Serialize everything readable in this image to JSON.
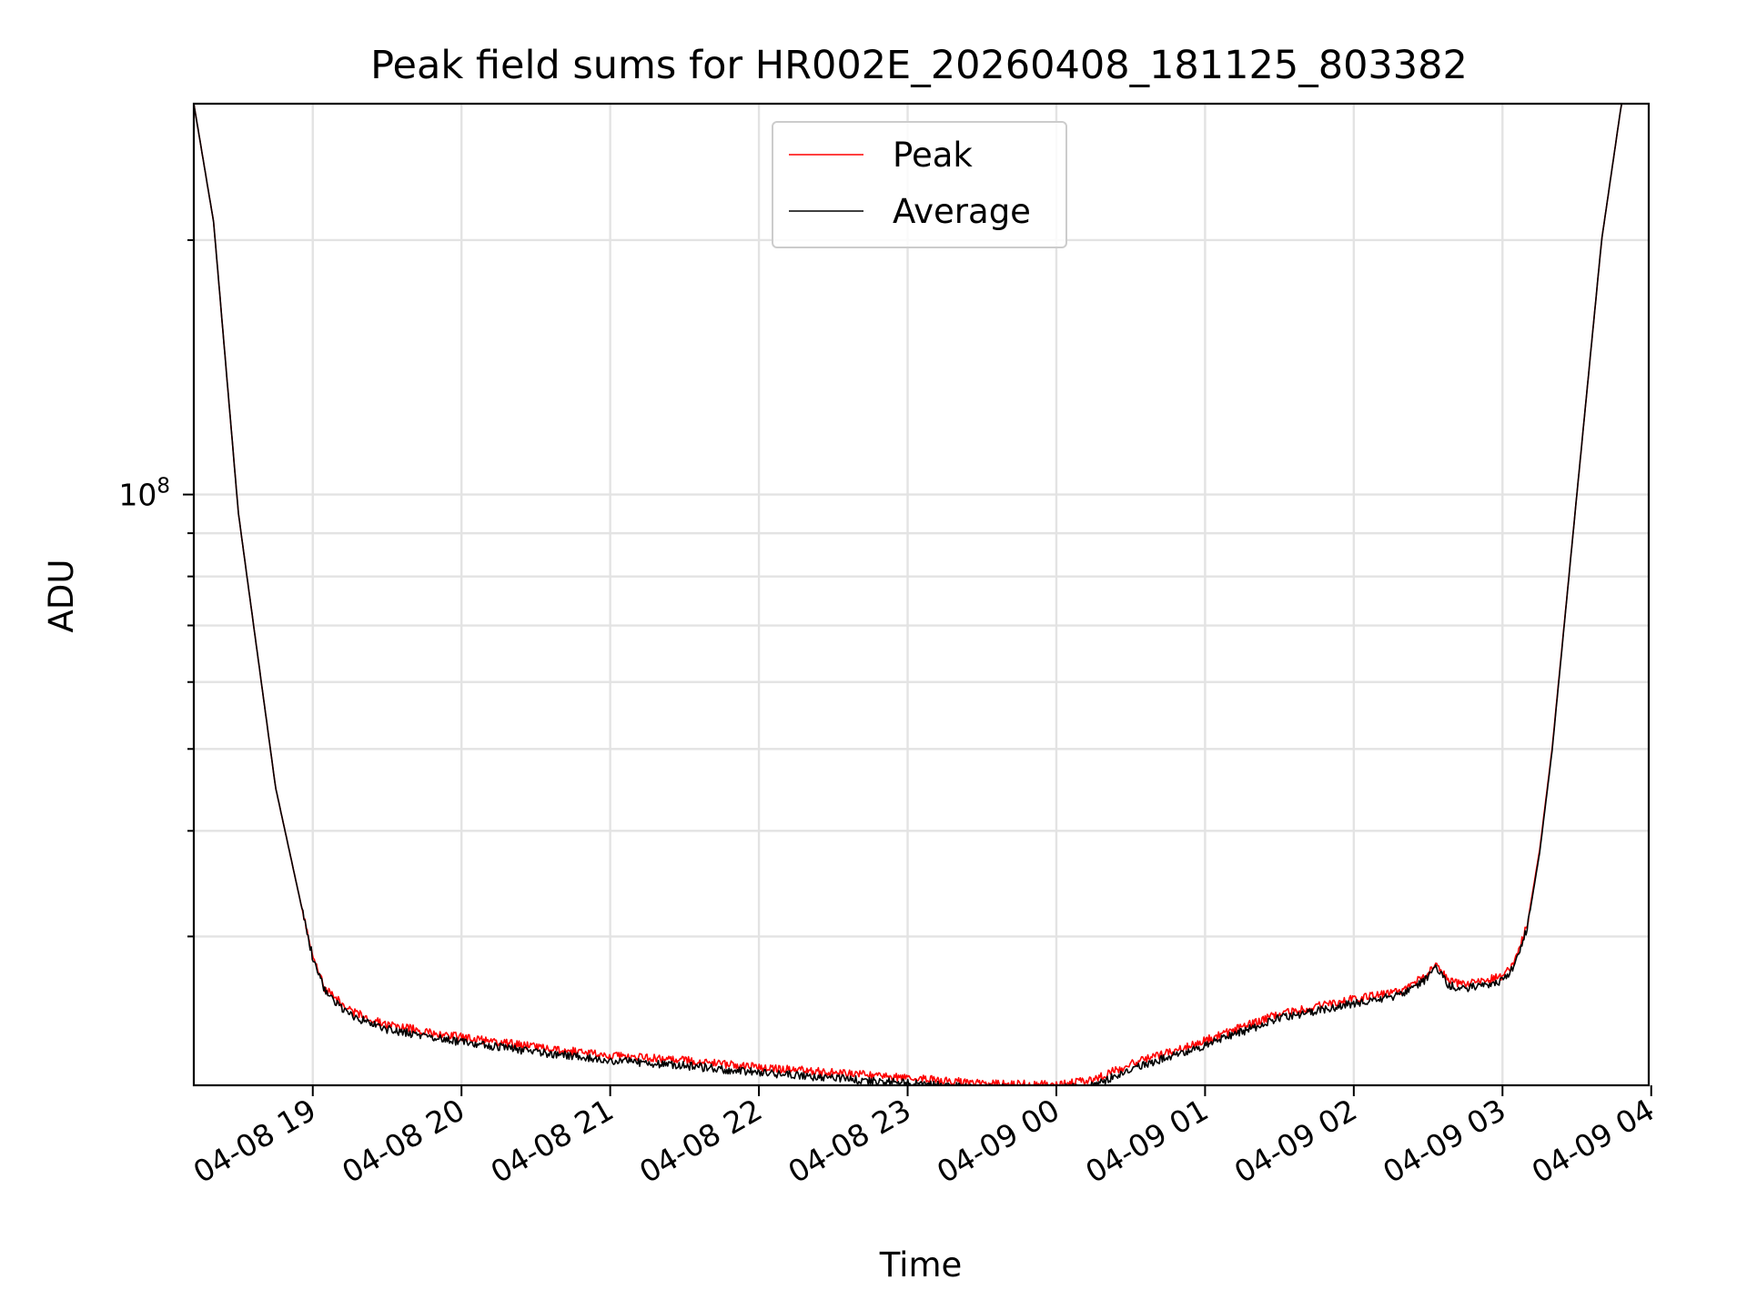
{
  "chart_data": {
    "type": "line",
    "title": "Peak field sums for HR002E_20260408_181125_803382",
    "xlabel": "Time",
    "ylabel": "ADU",
    "y_scale": "log",
    "grid": true,
    "legend_position": "upper-center",
    "xlim": [
      "2026-04-08 18:12",
      "2026-04-09 03:59"
    ],
    "ylim": [
      20000000,
      290000000
    ],
    "x_ticks": [
      "2026-04-08 19:00",
      "2026-04-08 20:00",
      "2026-04-08 21:00",
      "2026-04-08 22:00",
      "2026-04-08 23:00",
      "2026-04-09 00:00",
      "2026-04-09 01:00",
      "2026-04-09 02:00",
      "2026-04-09 03:00",
      "2026-04-09 04:00"
    ],
    "x_tick_labels": [
      "04-08 19",
      "04-08 20",
      "04-08 21",
      "04-08 22",
      "04-08 23",
      "04-09 00",
      "04-09 01",
      "04-09 02",
      "04-09 03",
      "04-09 04"
    ],
    "y_major_tick": {
      "value": 100000000,
      "base": "10",
      "exponent": "8"
    },
    "y_minor_ticks": [
      20000000,
      30000000,
      40000000,
      50000000,
      60000000,
      70000000,
      80000000,
      90000000,
      200000000
    ],
    "x": [
      "2026-04-08 18:12",
      "2026-04-08 18:20",
      "2026-04-08 18:30",
      "2026-04-08 18:45",
      "2026-04-08 18:55",
      "2026-04-08 19:00",
      "2026-04-08 19:05",
      "2026-04-08 19:15",
      "2026-04-08 19:30",
      "2026-04-08 20:00",
      "2026-04-08 20:30",
      "2026-04-08 21:00",
      "2026-04-08 21:30",
      "2026-04-08 22:00",
      "2026-04-08 22:30",
      "2026-04-08 23:00",
      "2026-04-08 23:30",
      "2026-04-09 00:00",
      "2026-04-09 00:15",
      "2026-04-09 00:30",
      "2026-04-09 01:00",
      "2026-04-09 01:30",
      "2026-04-09 02:00",
      "2026-04-09 02:20",
      "2026-04-09 02:30",
      "2026-04-09 02:33",
      "2026-04-09 02:38",
      "2026-04-09 02:45",
      "2026-04-09 03:00",
      "2026-04-09 03:05",
      "2026-04-09 03:10",
      "2026-04-09 03:15",
      "2026-04-09 03:20",
      "2026-04-09 03:30",
      "2026-04-09 03:40",
      "2026-04-09 03:48",
      "2026-04-09 03:59"
    ],
    "series": [
      {
        "name": "Peak",
        "color": "#ff0000",
        "values": [
          290000000,
          210000000,
          95000000,
          45000000,
          33000000,
          28500000,
          26000000,
          24500000,
          23600000,
          22800000,
          22200000,
          21700000,
          21400000,
          21000000,
          20700000,
          20400000,
          20100000,
          20050000,
          20300000,
          21200000,
          22600000,
          24300000,
          25300000,
          25900000,
          27100000,
          28000000,
          26600000,
          26300000,
          26900000,
          28000000,
          31000000,
          38000000,
          50000000,
          100000000,
          200000000,
          290000000,
          290000000
        ]
      },
      {
        "name": "Average",
        "color": "#000000",
        "values": [
          290000000,
          210000000,
          95000000,
          45000000,
          33000000,
          28300000,
          25800000,
          24200000,
          23300000,
          22500000,
          21900000,
          21400000,
          21100000,
          20700000,
          20400000,
          20100000,
          19850000,
          19800000,
          20000000,
          20900000,
          22300000,
          24000000,
          25000000,
          25600000,
          26800000,
          27700000,
          26300000,
          26000000,
          26600000,
          27700000,
          30700000,
          37700000,
          49700000,
          100000000,
          200000000,
          290000000,
          290000000
        ]
      }
    ]
  }
}
